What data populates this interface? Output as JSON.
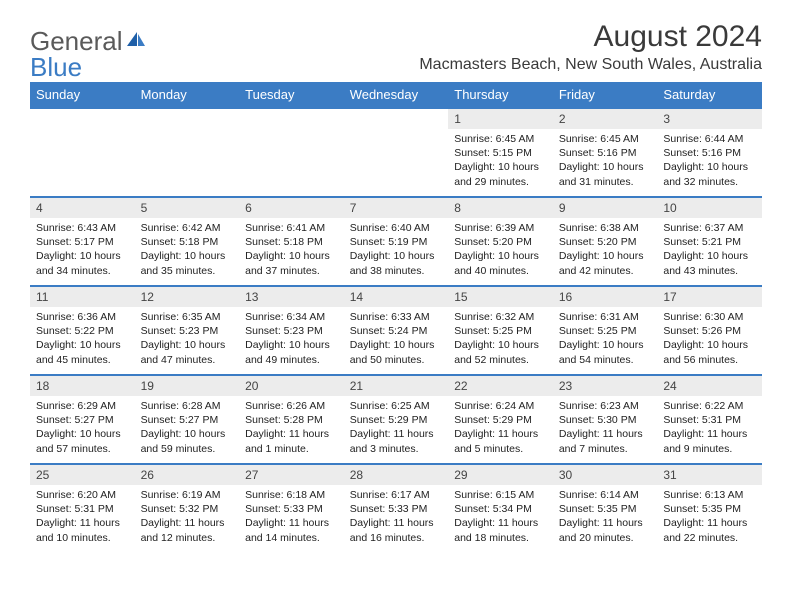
{
  "brand": {
    "part1": "General",
    "part2": "Blue"
  },
  "title": "August 2024",
  "location": "Macmasters Beach, New South Wales, Australia",
  "colors": {
    "header_bg": "#3b7cc4",
    "header_text": "#ffffff",
    "daynum_bg": "#ececec",
    "rule": "#3b7cc4",
    "text": "#222222",
    "page_bg": "#ffffff"
  },
  "weekdays": [
    "Sunday",
    "Monday",
    "Tuesday",
    "Wednesday",
    "Thursday",
    "Friday",
    "Saturday"
  ],
  "weeks": [
    [
      null,
      null,
      null,
      null,
      {
        "n": "1",
        "sr": "Sunrise: 6:45 AM",
        "ss": "Sunset: 5:15 PM",
        "d1": "Daylight: 10 hours",
        "d2": "and 29 minutes."
      },
      {
        "n": "2",
        "sr": "Sunrise: 6:45 AM",
        "ss": "Sunset: 5:16 PM",
        "d1": "Daylight: 10 hours",
        "d2": "and 31 minutes."
      },
      {
        "n": "3",
        "sr": "Sunrise: 6:44 AM",
        "ss": "Sunset: 5:16 PM",
        "d1": "Daylight: 10 hours",
        "d2": "and 32 minutes."
      }
    ],
    [
      {
        "n": "4",
        "sr": "Sunrise: 6:43 AM",
        "ss": "Sunset: 5:17 PM",
        "d1": "Daylight: 10 hours",
        "d2": "and 34 minutes."
      },
      {
        "n": "5",
        "sr": "Sunrise: 6:42 AM",
        "ss": "Sunset: 5:18 PM",
        "d1": "Daylight: 10 hours",
        "d2": "and 35 minutes."
      },
      {
        "n": "6",
        "sr": "Sunrise: 6:41 AM",
        "ss": "Sunset: 5:18 PM",
        "d1": "Daylight: 10 hours",
        "d2": "and 37 minutes."
      },
      {
        "n": "7",
        "sr": "Sunrise: 6:40 AM",
        "ss": "Sunset: 5:19 PM",
        "d1": "Daylight: 10 hours",
        "d2": "and 38 minutes."
      },
      {
        "n": "8",
        "sr": "Sunrise: 6:39 AM",
        "ss": "Sunset: 5:20 PM",
        "d1": "Daylight: 10 hours",
        "d2": "and 40 minutes."
      },
      {
        "n": "9",
        "sr": "Sunrise: 6:38 AM",
        "ss": "Sunset: 5:20 PM",
        "d1": "Daylight: 10 hours",
        "d2": "and 42 minutes."
      },
      {
        "n": "10",
        "sr": "Sunrise: 6:37 AM",
        "ss": "Sunset: 5:21 PM",
        "d1": "Daylight: 10 hours",
        "d2": "and 43 minutes."
      }
    ],
    [
      {
        "n": "11",
        "sr": "Sunrise: 6:36 AM",
        "ss": "Sunset: 5:22 PM",
        "d1": "Daylight: 10 hours",
        "d2": "and 45 minutes."
      },
      {
        "n": "12",
        "sr": "Sunrise: 6:35 AM",
        "ss": "Sunset: 5:23 PM",
        "d1": "Daylight: 10 hours",
        "d2": "and 47 minutes."
      },
      {
        "n": "13",
        "sr": "Sunrise: 6:34 AM",
        "ss": "Sunset: 5:23 PM",
        "d1": "Daylight: 10 hours",
        "d2": "and 49 minutes."
      },
      {
        "n": "14",
        "sr": "Sunrise: 6:33 AM",
        "ss": "Sunset: 5:24 PM",
        "d1": "Daylight: 10 hours",
        "d2": "and 50 minutes."
      },
      {
        "n": "15",
        "sr": "Sunrise: 6:32 AM",
        "ss": "Sunset: 5:25 PM",
        "d1": "Daylight: 10 hours",
        "d2": "and 52 minutes."
      },
      {
        "n": "16",
        "sr": "Sunrise: 6:31 AM",
        "ss": "Sunset: 5:25 PM",
        "d1": "Daylight: 10 hours",
        "d2": "and 54 minutes."
      },
      {
        "n": "17",
        "sr": "Sunrise: 6:30 AM",
        "ss": "Sunset: 5:26 PM",
        "d1": "Daylight: 10 hours",
        "d2": "and 56 minutes."
      }
    ],
    [
      {
        "n": "18",
        "sr": "Sunrise: 6:29 AM",
        "ss": "Sunset: 5:27 PM",
        "d1": "Daylight: 10 hours",
        "d2": "and 57 minutes."
      },
      {
        "n": "19",
        "sr": "Sunrise: 6:28 AM",
        "ss": "Sunset: 5:27 PM",
        "d1": "Daylight: 10 hours",
        "d2": "and 59 minutes."
      },
      {
        "n": "20",
        "sr": "Sunrise: 6:26 AM",
        "ss": "Sunset: 5:28 PM",
        "d1": "Daylight: 11 hours",
        "d2": "and 1 minute."
      },
      {
        "n": "21",
        "sr": "Sunrise: 6:25 AM",
        "ss": "Sunset: 5:29 PM",
        "d1": "Daylight: 11 hours",
        "d2": "and 3 minutes."
      },
      {
        "n": "22",
        "sr": "Sunrise: 6:24 AM",
        "ss": "Sunset: 5:29 PM",
        "d1": "Daylight: 11 hours",
        "d2": "and 5 minutes."
      },
      {
        "n": "23",
        "sr": "Sunrise: 6:23 AM",
        "ss": "Sunset: 5:30 PM",
        "d1": "Daylight: 11 hours",
        "d2": "and 7 minutes."
      },
      {
        "n": "24",
        "sr": "Sunrise: 6:22 AM",
        "ss": "Sunset: 5:31 PM",
        "d1": "Daylight: 11 hours",
        "d2": "and 9 minutes."
      }
    ],
    [
      {
        "n": "25",
        "sr": "Sunrise: 6:20 AM",
        "ss": "Sunset: 5:31 PM",
        "d1": "Daylight: 11 hours",
        "d2": "and 10 minutes."
      },
      {
        "n": "26",
        "sr": "Sunrise: 6:19 AM",
        "ss": "Sunset: 5:32 PM",
        "d1": "Daylight: 11 hours",
        "d2": "and 12 minutes."
      },
      {
        "n": "27",
        "sr": "Sunrise: 6:18 AM",
        "ss": "Sunset: 5:33 PM",
        "d1": "Daylight: 11 hours",
        "d2": "and 14 minutes."
      },
      {
        "n": "28",
        "sr": "Sunrise: 6:17 AM",
        "ss": "Sunset: 5:33 PM",
        "d1": "Daylight: 11 hours",
        "d2": "and 16 minutes."
      },
      {
        "n": "29",
        "sr": "Sunrise: 6:15 AM",
        "ss": "Sunset: 5:34 PM",
        "d1": "Daylight: 11 hours",
        "d2": "and 18 minutes."
      },
      {
        "n": "30",
        "sr": "Sunrise: 6:14 AM",
        "ss": "Sunset: 5:35 PM",
        "d1": "Daylight: 11 hours",
        "d2": "and 20 minutes."
      },
      {
        "n": "31",
        "sr": "Sunrise: 6:13 AM",
        "ss": "Sunset: 5:35 PM",
        "d1": "Daylight: 11 hours",
        "d2": "and 22 minutes."
      }
    ]
  ]
}
